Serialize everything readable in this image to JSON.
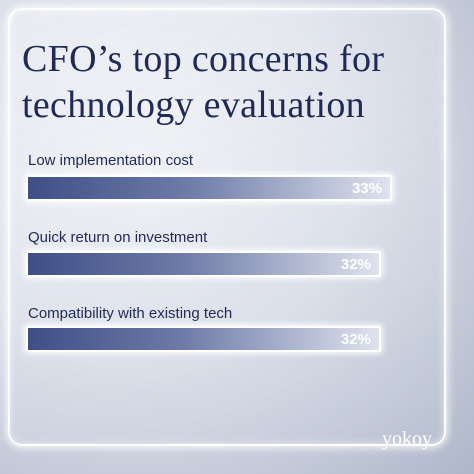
{
  "chart_data": {
    "type": "bar",
    "orientation": "horizontal",
    "title": "CFO’s top concerns for technology evaluation",
    "categories": [
      "Low implementation cost",
      "Quick return on investment",
      "Compatibility with existing tech"
    ],
    "values": [
      33,
      32,
      32
    ],
    "value_labels": [
      "33%",
      "32%",
      "32%"
    ],
    "color": "#3f4f86",
    "logo": "yokoy"
  }
}
